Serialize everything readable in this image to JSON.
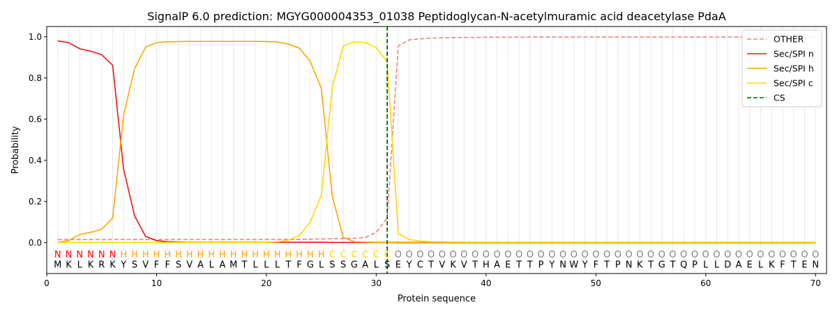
{
  "chart_data": {
    "type": "line",
    "title": "SignalP 6.0 prediction: MGYG000004353_01038 Peptidoglycan-N-acetylmuramic acid deacetylase PdaA",
    "xlabel": "Protein sequence",
    "ylabel": "Probability",
    "xlim": [
      0,
      71
    ],
    "ylim": [
      -0.15,
      1.05
    ],
    "xticks": [
      0,
      10,
      20,
      30,
      40,
      50,
      60,
      70
    ],
    "yticks": [
      0.0,
      0.2,
      0.4,
      0.6,
      0.8,
      1.0
    ],
    "xtick_labels": [
      "0",
      "10",
      "20",
      "30",
      "40",
      "50",
      "60",
      "70"
    ],
    "ytick_labels": [
      "0.0",
      "0.2",
      "0.4",
      "0.6",
      "0.8",
      "1.0"
    ],
    "grid": "vertical lines at each residue",
    "legend_position": "top-right",
    "sequence": [
      "M",
      "K",
      "L",
      "K",
      "R",
      "K",
      "Y",
      "S",
      "V",
      "F",
      "F",
      "S",
      "V",
      "A",
      "L",
      "A",
      "M",
      "T",
      "L",
      "L",
      "L",
      "T",
      "F",
      "G",
      "L",
      "S",
      "S",
      "G",
      "A",
      "L",
      "S",
      "E",
      "Y",
      "C",
      "T",
      "V",
      "K",
      "V",
      "T",
      "H",
      "A",
      "E",
      "T",
      "T",
      "P",
      "Y",
      "N",
      "W",
      "Y",
      "F",
      "T",
      "P",
      "N",
      "K",
      "T",
      "G",
      "T",
      "Q",
      "P",
      "L",
      "L",
      "D",
      "A",
      "E",
      "L",
      "K",
      "F",
      "T",
      "E",
      "N"
    ],
    "region_labels": [
      "N",
      "N",
      "N",
      "N",
      "N",
      "N",
      "H",
      "H",
      "H",
      "H",
      "H",
      "H",
      "H",
      "H",
      "H",
      "H",
      "H",
      "H",
      "H",
      "H",
      "H",
      "H",
      "H",
      "H",
      "H",
      "C",
      "C",
      "C",
      "C",
      "C",
      "C",
      "O",
      "O",
      "O",
      "O",
      "O",
      "O",
      "O",
      "O",
      "O",
      "O",
      "O",
      "O",
      "O",
      "O",
      "O",
      "O",
      "O",
      "O",
      "O",
      "O",
      "O",
      "O",
      "O",
      "O",
      "O",
      "O",
      "O",
      "O",
      "O",
      "O",
      "O",
      "O",
      "O",
      "O",
      "O",
      "O",
      "O",
      "O",
      "O"
    ],
    "region_colors": {
      "N": "#ff0000",
      "H": "#ffa500",
      "C": "#ffd700",
      "O": "#808080"
    },
    "cs_position": 31,
    "series": [
      {
        "name": "OTHER",
        "color": "#f08080",
        "style": "dashed",
        "values": [
          0.015,
          0.015,
          0.015,
          0.015,
          0.015,
          0.015,
          0.015,
          0.015,
          0.015,
          0.015,
          0.015,
          0.015,
          0.015,
          0.015,
          0.015,
          0.015,
          0.015,
          0.015,
          0.015,
          0.015,
          0.015,
          0.016,
          0.016,
          0.017,
          0.018,
          0.019,
          0.02,
          0.021,
          0.025,
          0.05,
          0.12,
          0.955,
          0.985,
          0.99,
          0.993,
          0.995,
          0.996,
          0.997,
          0.997,
          0.998,
          0.998,
          0.998,
          0.998,
          0.999,
          0.999,
          0.999,
          0.999,
          0.999,
          0.999,
          0.999,
          0.999,
          0.999,
          0.999,
          0.999,
          0.999,
          0.999,
          0.999,
          0.999,
          0.999,
          0.999,
          0.999,
          0.999,
          0.999,
          0.999,
          0.999,
          0.999,
          0.999,
          0.999,
          0.999,
          0.999
        ]
      },
      {
        "name": "Sec/SPI n",
        "color": "#ee1111",
        "style": "solid",
        "values": [
          0.98,
          0.972,
          0.942,
          0.93,
          0.913,
          0.862,
          0.357,
          0.13,
          0.03,
          0.01,
          0.005,
          0.003,
          0.002,
          0.002,
          0.002,
          0.002,
          0.002,
          0.002,
          0.002,
          0.002,
          0.002,
          0.002,
          0.002,
          0.002,
          0.002,
          0.001,
          0.001,
          0.001,
          0.001,
          0.001,
          0.001,
          0,
          0,
          0,
          0,
          0,
          0,
          0,
          0,
          0,
          0,
          0,
          0,
          0,
          0,
          0,
          0,
          0,
          0,
          0,
          0,
          0,
          0,
          0,
          0,
          0,
          0,
          0,
          0,
          0,
          0,
          0,
          0,
          0,
          0,
          0,
          0,
          0,
          0,
          0
        ]
      },
      {
        "name": "Sec/SPI h",
        "color": "#ffa500",
        "style": "solid",
        "values": [
          0.002,
          0.01,
          0.04,
          0.05,
          0.065,
          0.12,
          0.62,
          0.845,
          0.95,
          0.972,
          0.976,
          0.977,
          0.978,
          0.978,
          0.978,
          0.978,
          0.978,
          0.978,
          0.978,
          0.977,
          0.975,
          0.965,
          0.945,
          0.88,
          0.75,
          0.225,
          0.025,
          0.005,
          0.003,
          0.002,
          0.002,
          0.002,
          0.002,
          0.002,
          0.002,
          0.002,
          0.002,
          0.002,
          0.002,
          0.002,
          0.002,
          0.002,
          0.002,
          0.002,
          0.002,
          0.002,
          0.002,
          0.002,
          0.002,
          0.002,
          0.002,
          0.002,
          0.002,
          0.002,
          0.002,
          0.002,
          0.002,
          0.002,
          0.002,
          0.002,
          0.002,
          0.002,
          0.002,
          0.002,
          0.002,
          0.002,
          0.002,
          0.002,
          0.002,
          0.002
        ]
      },
      {
        "name": "Sec/SPI c",
        "color": "#ffd700",
        "style": "solid",
        "values": [
          0.001,
          0.001,
          0.001,
          0.001,
          0.001,
          0.001,
          0.001,
          0.001,
          0.001,
          0.001,
          0.001,
          0.001,
          0.001,
          0.001,
          0.001,
          0.001,
          0.001,
          0.001,
          0.001,
          0.002,
          0.004,
          0.012,
          0.035,
          0.1,
          0.23,
          0.755,
          0.955,
          0.975,
          0.972,
          0.948,
          0.878,
          0.045,
          0.015,
          0.008,
          0.005,
          0.004,
          0.003,
          0.003,
          0.002,
          0.002,
          0.002,
          0.002,
          0.002,
          0.002,
          0.002,
          0.002,
          0.002,
          0.002,
          0.002,
          0.002,
          0.002,
          0.002,
          0.002,
          0.002,
          0.002,
          0.002,
          0.002,
          0.002,
          0.002,
          0.002,
          0.002,
          0.002,
          0.002,
          0.002,
          0.002,
          0.002,
          0.002,
          0.002,
          0.002,
          0.002
        ]
      }
    ],
    "cs_legend": {
      "name": "CS",
      "color": "#006400",
      "style": "dashed"
    }
  }
}
